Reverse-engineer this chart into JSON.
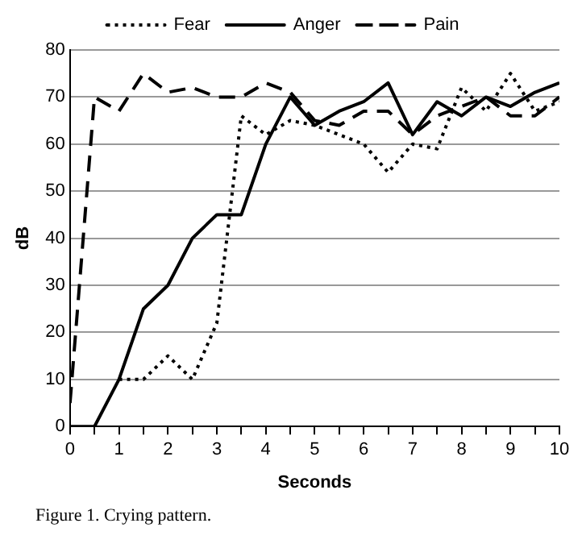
{
  "chart_data": {
    "type": "line",
    "xlabel": "Seconds",
    "ylabel": "dB",
    "x": [
      0,
      0.5,
      1,
      1.5,
      2,
      2.5,
      3,
      3.5,
      4,
      4.5,
      5,
      5.5,
      6,
      6.5,
      7,
      7.5,
      8,
      8.5,
      9,
      9.5,
      10
    ],
    "series": [
      {
        "name": "Fear",
        "color": "#000000",
        "line_style": "dotted",
        "values": [
          null,
          null,
          10,
          10,
          15,
          10,
          22,
          66,
          62,
          65,
          64,
          62,
          60,
          54,
          60,
          59,
          72,
          67,
          75,
          67,
          69
        ]
      },
      {
        "name": "Anger",
        "color": "#000000",
        "line_style": "solid",
        "values": [
          0,
          0,
          10,
          25,
          30,
          40,
          45,
          45,
          60,
          70,
          64,
          67,
          69,
          73,
          62,
          69,
          66,
          70,
          68,
          71,
          73
        ]
      },
      {
        "name": "Pain",
        "color": "#000000",
        "line_style": "dashed",
        "values": [
          5,
          70,
          67,
          75,
          71,
          72,
          70,
          70,
          73,
          71,
          65,
          64,
          67,
          67,
          62,
          66,
          68,
          70,
          66,
          66,
          70
        ]
      }
    ],
    "xlim": [
      0,
      10
    ],
    "xticks": [
      0,
      {
        "value": 0.5,
        "label": null
      },
      1,
      {
        "value": 1.5,
        "label": null
      },
      2,
      {
        "value": 2.5,
        "label": null
      },
      3,
      {
        "value": 3.5,
        "label": null
      },
      4,
      {
        "value": 4.5,
        "label": null
      },
      5,
      {
        "value": 5.5,
        "label": null
      },
      6,
      {
        "value": 6.5,
        "label": null
      },
      7,
      {
        "value": 7.5,
        "label": null
      },
      8,
      {
        "value": 8.5,
        "label": null
      },
      9,
      {
        "value": 9.5,
        "label": null
      },
      10
    ],
    "ylim": [
      0,
      80
    ],
    "yticks": [
      0,
      10,
      20,
      30,
      40,
      50,
      60,
      70,
      80
    ],
    "grid": "y",
    "legend": "top",
    "marker": "none",
    "annotations": [
      "Figure 1. Crying pattern."
    ]
  }
}
